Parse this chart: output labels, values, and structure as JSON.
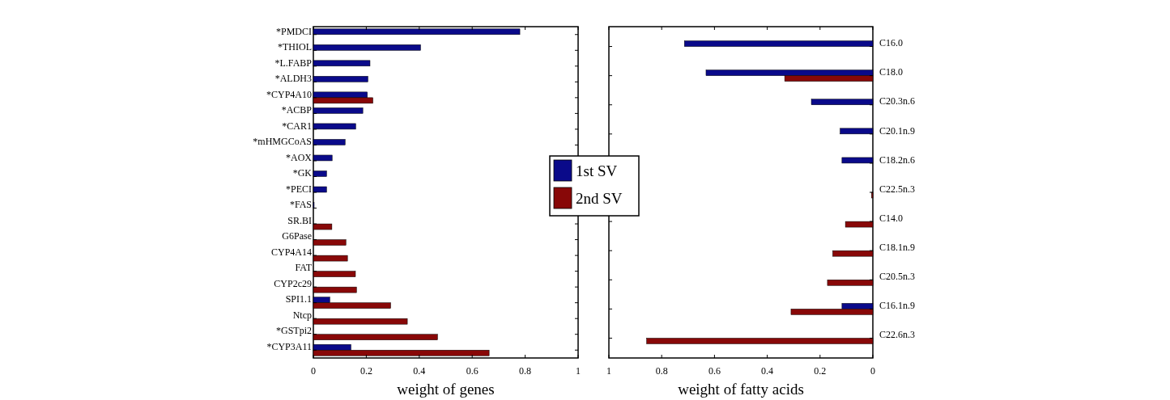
{
  "chart_data": [
    {
      "type": "bar",
      "orientation": "horizontal",
      "xlabel": "weight of genes",
      "legend": "right",
      "categories": [
        "*PMDCI",
        "*THIOL",
        "*L.FABP",
        "*ALDH3",
        "*CYP4A10",
        "*ACBP",
        "*CAR1",
        "*mHMGCoAS",
        "*AOX",
        "*GK",
        "*PECI",
        "*FAS",
        "SR.BI",
        "G6Pase",
        "CYP4A14",
        "FAT",
        "CYP2c29",
        "SPI1.1",
        "Ntcp",
        "*GSTpi2",
        "*CYP3A11"
      ],
      "series": [
        {
          "name": "1st SV",
          "color": "#0a0a8a",
          "values": [
            0.78,
            0.405,
            0.214,
            0.206,
            0.204,
            0.187,
            0.16,
            0.12,
            0.071,
            0.05,
            0.05,
            0.003,
            null,
            null,
            null,
            null,
            null,
            0.062,
            null,
            null,
            0.142
          ]
        },
        {
          "name": "2nd SV",
          "color": "#880808",
          "values": [
            null,
            null,
            null,
            null,
            0.225,
            null,
            null,
            null,
            null,
            null,
            null,
            null,
            0.07,
            0.123,
            0.129,
            0.159,
            0.163,
            0.292,
            0.355,
            0.469,
            0.664
          ]
        }
      ],
      "xlim": [
        0,
        1
      ],
      "xticks": [
        0,
        0.2,
        0.4,
        0.6,
        0.8,
        1
      ]
    },
    {
      "type": "bar",
      "orientation": "horizontal",
      "xlabel": "weight of fatty acids",
      "categories": [
        "C16.0",
        "C18.0",
        "C20.3n.6",
        "C20.1n.9",
        "C18.2n.6",
        "C22.5n.3",
        "C14.0",
        "C18.1n.9",
        "C20.5n.3",
        "C16.1n.9",
        "C22.6n.3"
      ],
      "series": [
        {
          "color": "#0a0a8a",
          "values": [
            0.714,
            0.632,
            0.233,
            0.124,
            0.117,
            null,
            null,
            null,
            null,
            0.117,
            null
          ]
        },
        {
          "color": "#880808",
          "values": [
            null,
            0.334,
            null,
            null,
            null,
            0.005,
            0.104,
            0.152,
            0.172,
            0.31,
            0.857
          ]
        }
      ],
      "xlim": [
        1,
        0
      ],
      "xticks": [
        1,
        0.8,
        0.6,
        0.4,
        0.2,
        0
      ]
    }
  ]
}
